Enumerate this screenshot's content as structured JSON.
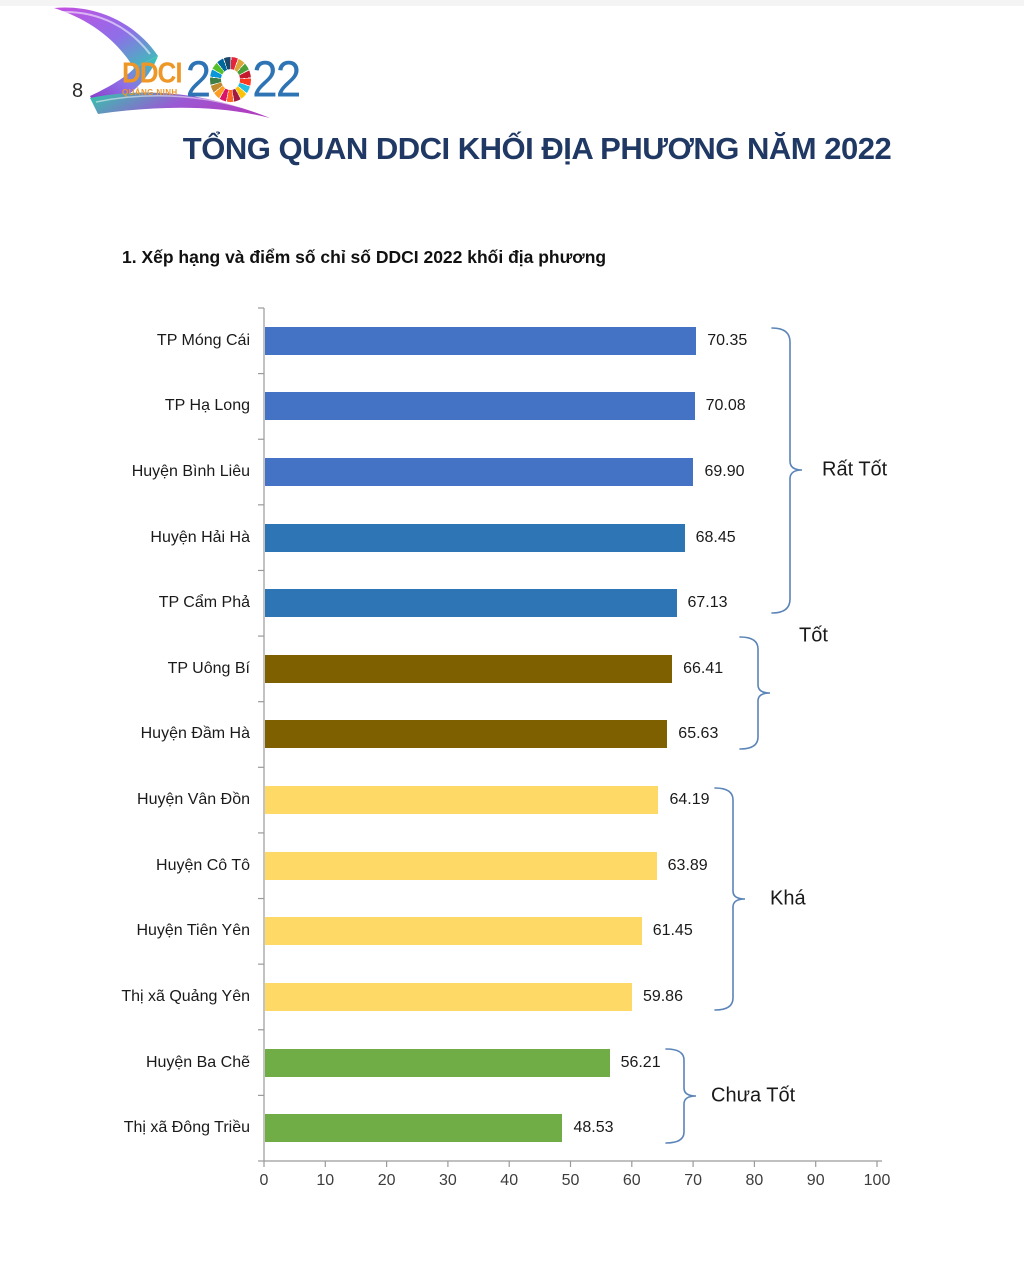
{
  "page": {
    "number": "8",
    "title": "TỔNG QUAN DDCI KHỐI ĐỊA PHƯƠNG NĂM 2022",
    "section_heading": "1. Xếp hạng và điểm số chỉ số DDCI 2022 khối địa phương"
  },
  "logo": {
    "name": "DDCI",
    "region": "QUẢNG NINH",
    "year_first_digit": "2",
    "year_last_digits": "22",
    "wordmark_color": "#EE9626",
    "year_color": "#2E74B5",
    "sdg_wheel_colors": [
      "#E5243B",
      "#DDA63A",
      "#4C9F38",
      "#C5192D",
      "#FF3A21",
      "#26BDE2",
      "#FCC30B",
      "#A21942",
      "#FD6925",
      "#DD1367",
      "#FD9D24",
      "#BF8B2E",
      "#3F7E44",
      "#0A97D9",
      "#56C02B",
      "#00689D",
      "#19486A"
    ]
  },
  "chart_data": {
    "type": "bar",
    "orientation": "horizontal",
    "title": "1. Xếp hạng và điểm số chỉ số DDCI 2022 khối địa phương",
    "xlabel": "",
    "ylabel": "",
    "xlim": [
      0,
      100
    ],
    "x_tick_labels": [
      "0",
      "10",
      "20",
      "30",
      "40",
      "50",
      "60",
      "70",
      "80",
      "90",
      "100"
    ],
    "grid": false,
    "value_labels_shown": true,
    "axis_color": "#9A9A9A",
    "bracket_color": "#5B84B8",
    "rows": [
      {
        "label": "TP Móng Cái",
        "value": 70.35,
        "value_label": "70.35",
        "color": "#4472C4",
        "tier": "Rất Tốt"
      },
      {
        "label": "TP Hạ Long",
        "value": 70.08,
        "value_label": "70.08",
        "color": "#4472C4",
        "tier": "Rất Tốt"
      },
      {
        "label": "Huyện Bình Liêu",
        "value": 69.9,
        "value_label": "69.90",
        "color": "#4472C4",
        "tier": "Rất Tốt"
      },
      {
        "label": "Huyện Hải Hà",
        "value": 68.45,
        "value_label": "68.45",
        "color": "#2E75B6",
        "tier": "Rất Tốt"
      },
      {
        "label": "TP Cẩm Phả",
        "value": 67.13,
        "value_label": "67.13",
        "color": "#2E75B6",
        "tier": "Rất Tốt"
      },
      {
        "label": "TP Uông Bí",
        "value": 66.41,
        "value_label": "66.41",
        "color": "#7F6000",
        "tier": "Tốt"
      },
      {
        "label": "Huyện Đầm Hà",
        "value": 65.63,
        "value_label": "65.63",
        "color": "#7F6000",
        "tier": "Tốt"
      },
      {
        "label": "Huyện Vân Đồn",
        "value": 64.19,
        "value_label": "64.19",
        "color": "#FFD966",
        "tier": "Khá"
      },
      {
        "label": "Huyện Cô Tô",
        "value": 63.89,
        "value_label": "63.89",
        "color": "#FFD966",
        "tier": "Khá"
      },
      {
        "label": "Huyện Tiên Yên",
        "value": 61.45,
        "value_label": "61.45",
        "color": "#FFD966",
        "tier": "Khá"
      },
      {
        "label": "Thị xã Quảng Yên",
        "value": 59.86,
        "value_label": "59.86",
        "color": "#FFD966",
        "tier": "Khá"
      },
      {
        "label": "Huyện Ba Chẽ",
        "value": 56.21,
        "value_label": "56.21",
        "color": "#70AD47",
        "tier": "Chưa Tốt"
      },
      {
        "label": "Thị xã Đông Triều",
        "value": 48.53,
        "value_label": "48.53",
        "color": "#70AD47",
        "tier": "Chưa Tốt"
      }
    ],
    "tiers": [
      {
        "label": "Rất Tốt",
        "row_start": 0,
        "row_end": 4
      },
      {
        "label": "Tốt",
        "row_start": 5,
        "row_end": 6
      },
      {
        "label": "Khá",
        "row_start": 7,
        "row_end": 10
      },
      {
        "label": "Chưa Tốt",
        "row_start": 11,
        "row_end": 12
      }
    ]
  }
}
